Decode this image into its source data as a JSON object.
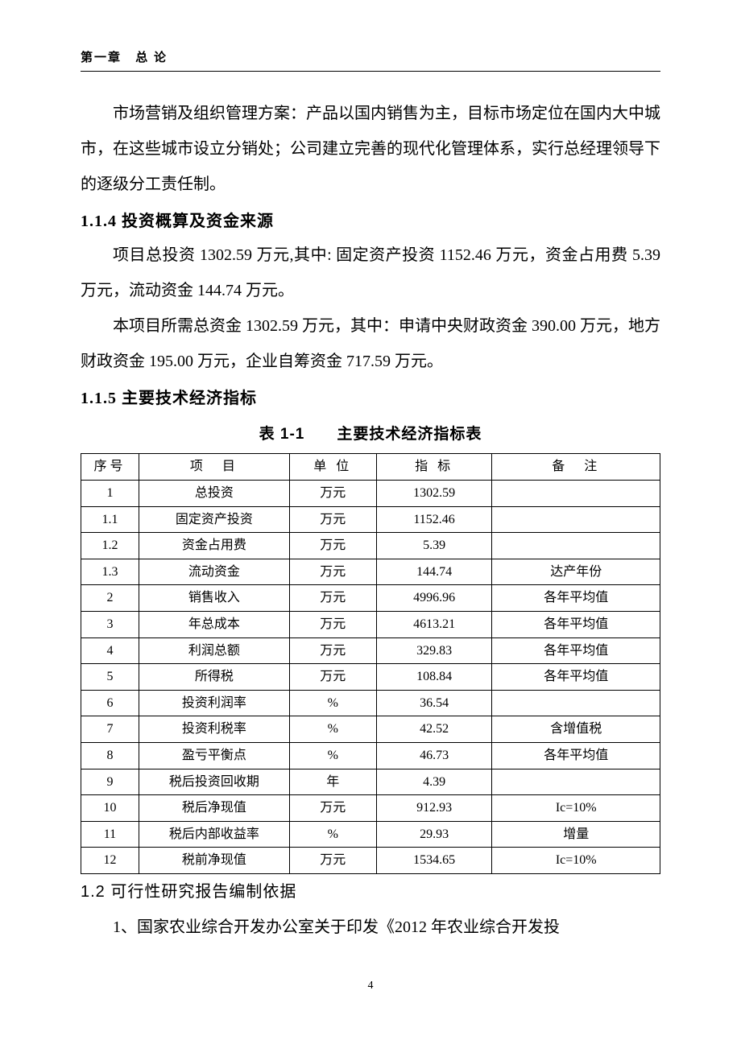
{
  "header": {
    "chapter": "第一章",
    "title": "总 论"
  },
  "body": {
    "p1": "市场营销及组织管理方案：产品以国内销售为主，目标市场定位在国内大中城市，在这些城市设立分销处；公司建立完善的现代化管理体系，实行总经理领导下的逐级分工责任制。",
    "h114": "1.1.4  投资概算及资金来源",
    "p2": "项目总投资 1302.59 万元,其中: 固定资产投资 1152.46 万元，资金占用费 5.39 万元，流动资金 144.74 万元。",
    "p3": "本项目所需总资金 1302.59 万元，其中：申请中央财政资金 390.00 万元，地方财政资金 195.00 万元，企业自筹资金 717.59 万元。",
    "h115": "1.1.5  主要技术经济指标",
    "table_title": "表 1-1　　主要技术经济指标表",
    "h12": "1.2  可行性研究报告编制依据",
    "p4": "1、国家农业综合开发办公室关于印发《2012 年农业综合开发投"
  },
  "table": {
    "columns": [
      "序号",
      "项　目",
      "单 位",
      "指 标",
      "备　注"
    ],
    "rows": [
      [
        "1",
        "总投资",
        "万元",
        "1302.59",
        ""
      ],
      [
        "1.1",
        "固定资产投资",
        "万元",
        "1152.46",
        ""
      ],
      [
        "1.2",
        "资金占用费",
        "万元",
        "5.39",
        ""
      ],
      [
        "1.3",
        "流动资金",
        "万元",
        "144.74",
        "达产年份"
      ],
      [
        "2",
        "销售收入",
        "万元",
        "4996.96",
        "各年平均值"
      ],
      [
        "3",
        "年总成本",
        "万元",
        "4613.21",
        "各年平均值"
      ],
      [
        "4",
        "利润总额",
        "万元",
        "329.83",
        "各年平均值"
      ],
      [
        "5",
        "所得税",
        "万元",
        "108.84",
        "各年平均值"
      ],
      [
        "6",
        "投资利润率",
        "%",
        "36.54",
        ""
      ],
      [
        "7",
        "投资利税率",
        "%",
        "42.52",
        "含增值税"
      ],
      [
        "8",
        "盈亏平衡点",
        "%",
        "46.73",
        "各年平均值"
      ],
      [
        "9",
        "税后投资回收期",
        "年",
        "4.39",
        ""
      ],
      [
        "10",
        "税后净现值",
        "万元",
        "912.93",
        "Ic=10%"
      ],
      [
        "11",
        "税后内部收益率",
        "%",
        "29.93",
        "增量"
      ],
      [
        "12",
        "税前净现值",
        "万元",
        "1534.65",
        "Ic=10%"
      ]
    ],
    "col_widths_pct": [
      10,
      26,
      15,
      20,
      29
    ],
    "border_color": "#000000",
    "font_size_pt": 12
  },
  "page_number": "4",
  "style": {
    "page_bg": "#ffffff",
    "text_color": "#000000",
    "body_font_size_pt": 15,
    "heading_font_size_pt": 15,
    "header_font_size_pt": 11,
    "body_font": "SimSun",
    "heading_font": "SimSun-Bold",
    "table_title_font": "SimHei"
  }
}
